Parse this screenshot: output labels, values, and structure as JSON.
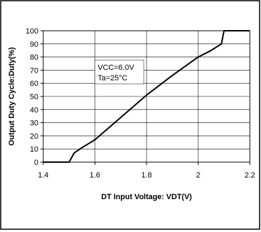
{
  "chart_data": {
    "type": "line",
    "title": "",
    "xlabel": "DT Input Voltage: VDT(V)",
    "ylabel": "Output Duty Cycle:Duty(%)",
    "xlim": [
      1.4,
      2.2
    ],
    "ylim": [
      0,
      100
    ],
    "x_ticks": [
      1.4,
      1.6,
      1.8,
      2,
      2.2
    ],
    "y_ticks": [
      0,
      10,
      20,
      30,
      40,
      50,
      60,
      70,
      80,
      90,
      100
    ],
    "x_tick_labels": [
      "1.4",
      "1.6",
      "1.8",
      "2",
      "2.2"
    ],
    "y_tick_labels": [
      "0",
      "10",
      "20",
      "30",
      "40",
      "50",
      "60",
      "70",
      "80",
      "90",
      "100"
    ],
    "grid": true,
    "legend": "none",
    "annotations": [
      "VCC=6.0V",
      "Ta=25°C"
    ],
    "colors": {
      "line": "#000000",
      "grid": "#000000",
      "frame": "#000000"
    },
    "series": [
      {
        "values": [
          {
            "x": 1.4,
            "y": 0
          },
          {
            "x": 1.5,
            "y": 0
          },
          {
            "x": 1.52,
            "y": 7
          },
          {
            "x": 1.55,
            "y": 11
          },
          {
            "x": 1.6,
            "y": 17
          },
          {
            "x": 1.7,
            "y": 34
          },
          {
            "x": 1.8,
            "y": 51
          },
          {
            "x": 1.9,
            "y": 66
          },
          {
            "x": 2.0,
            "y": 80
          },
          {
            "x": 2.05,
            "y": 85
          },
          {
            "x": 2.09,
            "y": 90
          },
          {
            "x": 2.1,
            "y": 100
          },
          {
            "x": 2.2,
            "y": 100
          }
        ]
      }
    ]
  }
}
